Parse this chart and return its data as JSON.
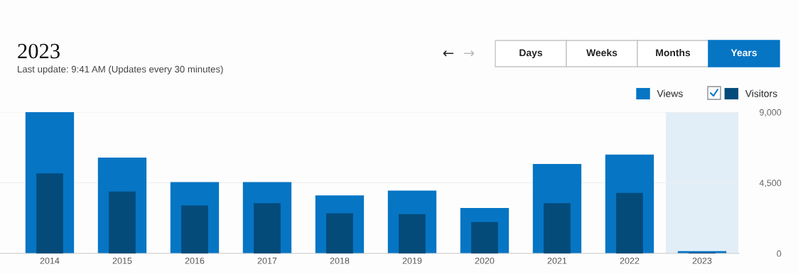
{
  "chart_data": {
    "type": "bar",
    "title": "2023",
    "subtitle": "Last update: 9:41 AM (Updates every 30 minutes)",
    "annotations": [
      "←",
      "→",
      "Days",
      "Weeks",
      "Months",
      "Years"
    ],
    "categories": [
      "2014",
      "2015",
      "2016",
      "2017",
      "2018",
      "2019",
      "2020",
      "2021",
      "2022",
      "2023"
    ],
    "series": [
      {
        "name": "Views",
        "color": "#0675c4",
        "values": [
          9000,
          6100,
          4550,
          4550,
          3700,
          4000,
          2900,
          5700,
          6300,
          150
        ]
      },
      {
        "name": "Visitors",
        "color": "#044b7a",
        "values": [
          5100,
          3950,
          3050,
          3200,
          2550,
          2500,
          2000,
          3200,
          3850,
          50
        ]
      }
    ],
    "bands": [
      {
        "axis": "x",
        "from": "2023",
        "to": "2023",
        "color": "#e2eef7"
      }
    ],
    "ylim": [
      0,
      9000
    ],
    "yticks": [
      0,
      {
        "value": 4500,
        "label": "4,500"
      },
      {
        "value": 9000,
        "label": "9,000"
      }
    ],
    "grid": "y",
    "legend": "top right"
  }
}
